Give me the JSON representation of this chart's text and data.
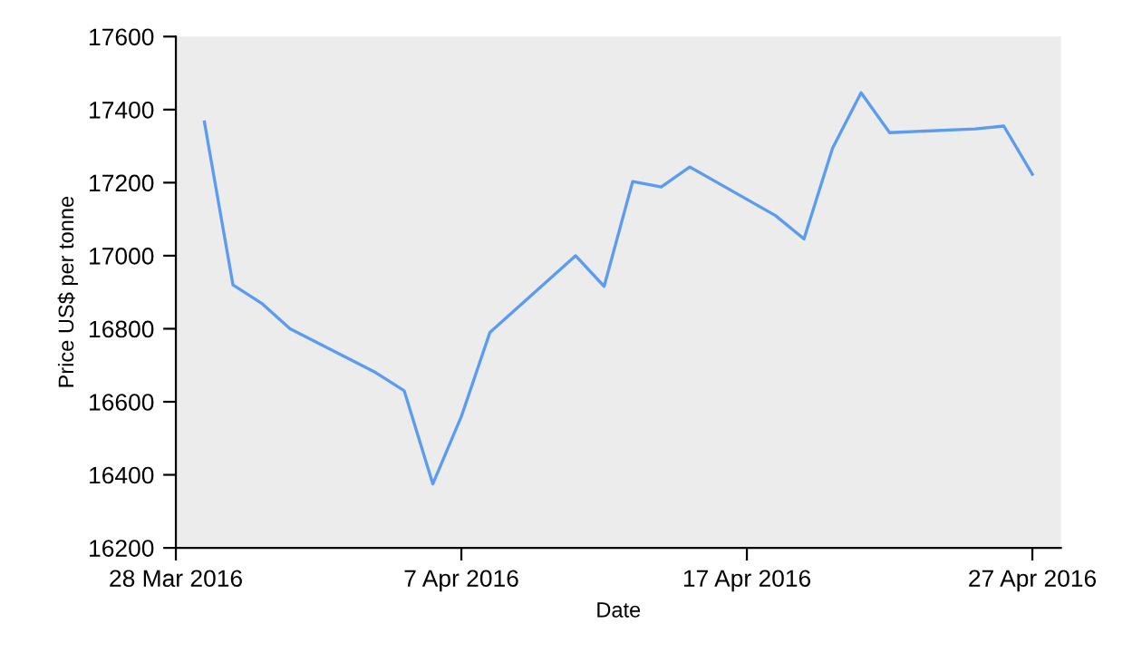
{
  "chart_data": {
    "type": "line",
    "xlabel": "Date",
    "ylabel": "Price US$ per tonne",
    "x": [
      "2016-03-29",
      "2016-03-30",
      "2016-03-31",
      "2016-04-01",
      "2016-04-04",
      "2016-04-05",
      "2016-04-06",
      "2016-04-07",
      "2016-04-08",
      "2016-04-11",
      "2016-04-12",
      "2016-04-13",
      "2016-04-14",
      "2016-04-15",
      "2016-04-18",
      "2016-04-19",
      "2016-04-20",
      "2016-04-21",
      "2016-04-22",
      "2016-04-25",
      "2016-04-26",
      "2016-04-27"
    ],
    "series": [
      {
        "color": "#5b9bf0",
        "values": [
          17366,
          16920,
          16870,
          16800,
          16680,
          16630,
          16375,
          16560,
          16790,
          17000,
          16916,
          17203,
          17188,
          17243,
          17110,
          17046,
          17294,
          17446,
          17337,
          17347,
          17355,
          17223
        ]
      }
    ],
    "xlim": [
      "2016-03-28",
      "2016-04-28"
    ],
    "xticks": [
      {
        "value": "2016-03-28",
        "label": "28 Mar 2016"
      },
      {
        "value": "2016-04-07",
        "label": "7 Apr 2016"
      },
      {
        "value": "2016-04-17",
        "label": "17 Apr 2016"
      },
      {
        "value": "2016-04-27",
        "label": "27 Apr 2016"
      }
    ],
    "ylim": [
      16200,
      17600
    ],
    "yticks": [
      16200,
      16400,
      16600,
      16800,
      17000,
      17200,
      17400,
      17600
    ],
    "grid": false,
    "legend": false,
    "marker": "none",
    "line_style": "solid"
  }
}
